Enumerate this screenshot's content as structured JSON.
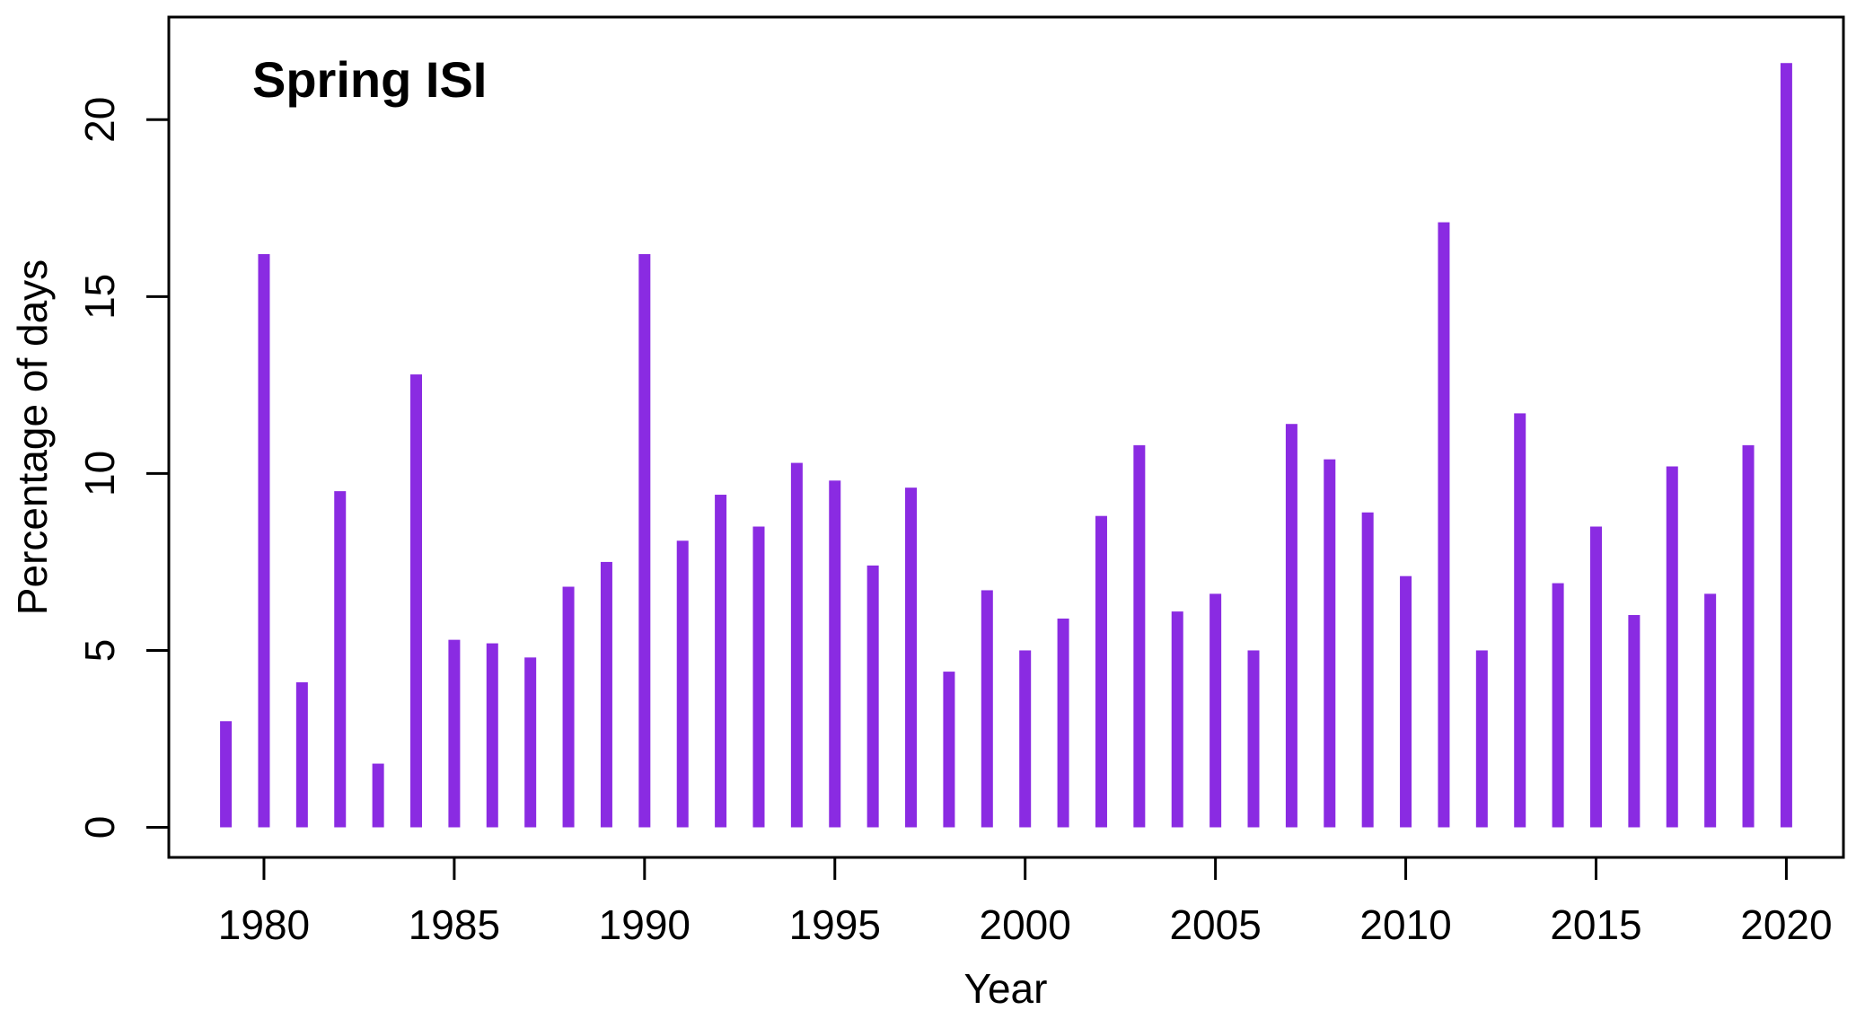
{
  "chart_data": {
    "type": "bar",
    "title": "Spring ISI",
    "xlabel": "Year",
    "ylabel": "Percentage of days",
    "x": [
      1979,
      1980,
      1981,
      1982,
      1983,
      1984,
      1985,
      1986,
      1987,
      1988,
      1989,
      1990,
      1991,
      1992,
      1993,
      1994,
      1995,
      1996,
      1997,
      1998,
      1999,
      2000,
      2001,
      2002,
      2003,
      2004,
      2005,
      2006,
      2007,
      2008,
      2009,
      2010,
      2011,
      2012,
      2013,
      2014,
      2015,
      2016,
      2017,
      2018,
      2019,
      2020
    ],
    "values": [
      3.0,
      16.2,
      4.1,
      9.5,
      1.8,
      12.8,
      5.3,
      5.2,
      4.8,
      6.8,
      7.5,
      16.2,
      8.1,
      9.4,
      8.5,
      10.3,
      9.8,
      7.4,
      9.6,
      4.4,
      6.7,
      5.0,
      5.9,
      8.8,
      10.8,
      6.1,
      6.6,
      5.0,
      11.4,
      10.4,
      8.9,
      7.1,
      17.1,
      5.0,
      11.7,
      6.9,
      8.5,
      6.0,
      10.2,
      6.6,
      10.8,
      21.6
    ],
    "xticks": [
      "1980",
      "1985",
      "1990",
      "1995",
      "2000",
      "2005",
      "2010",
      "2015",
      "2020"
    ],
    "yticks": [
      "0",
      "5",
      "10",
      "15",
      "20"
    ],
    "xlim": [
      1977.5,
      2021.5
    ],
    "ylim": [
      -0.85,
      22.9
    ],
    "grid": false,
    "color": "#8a2be2"
  }
}
